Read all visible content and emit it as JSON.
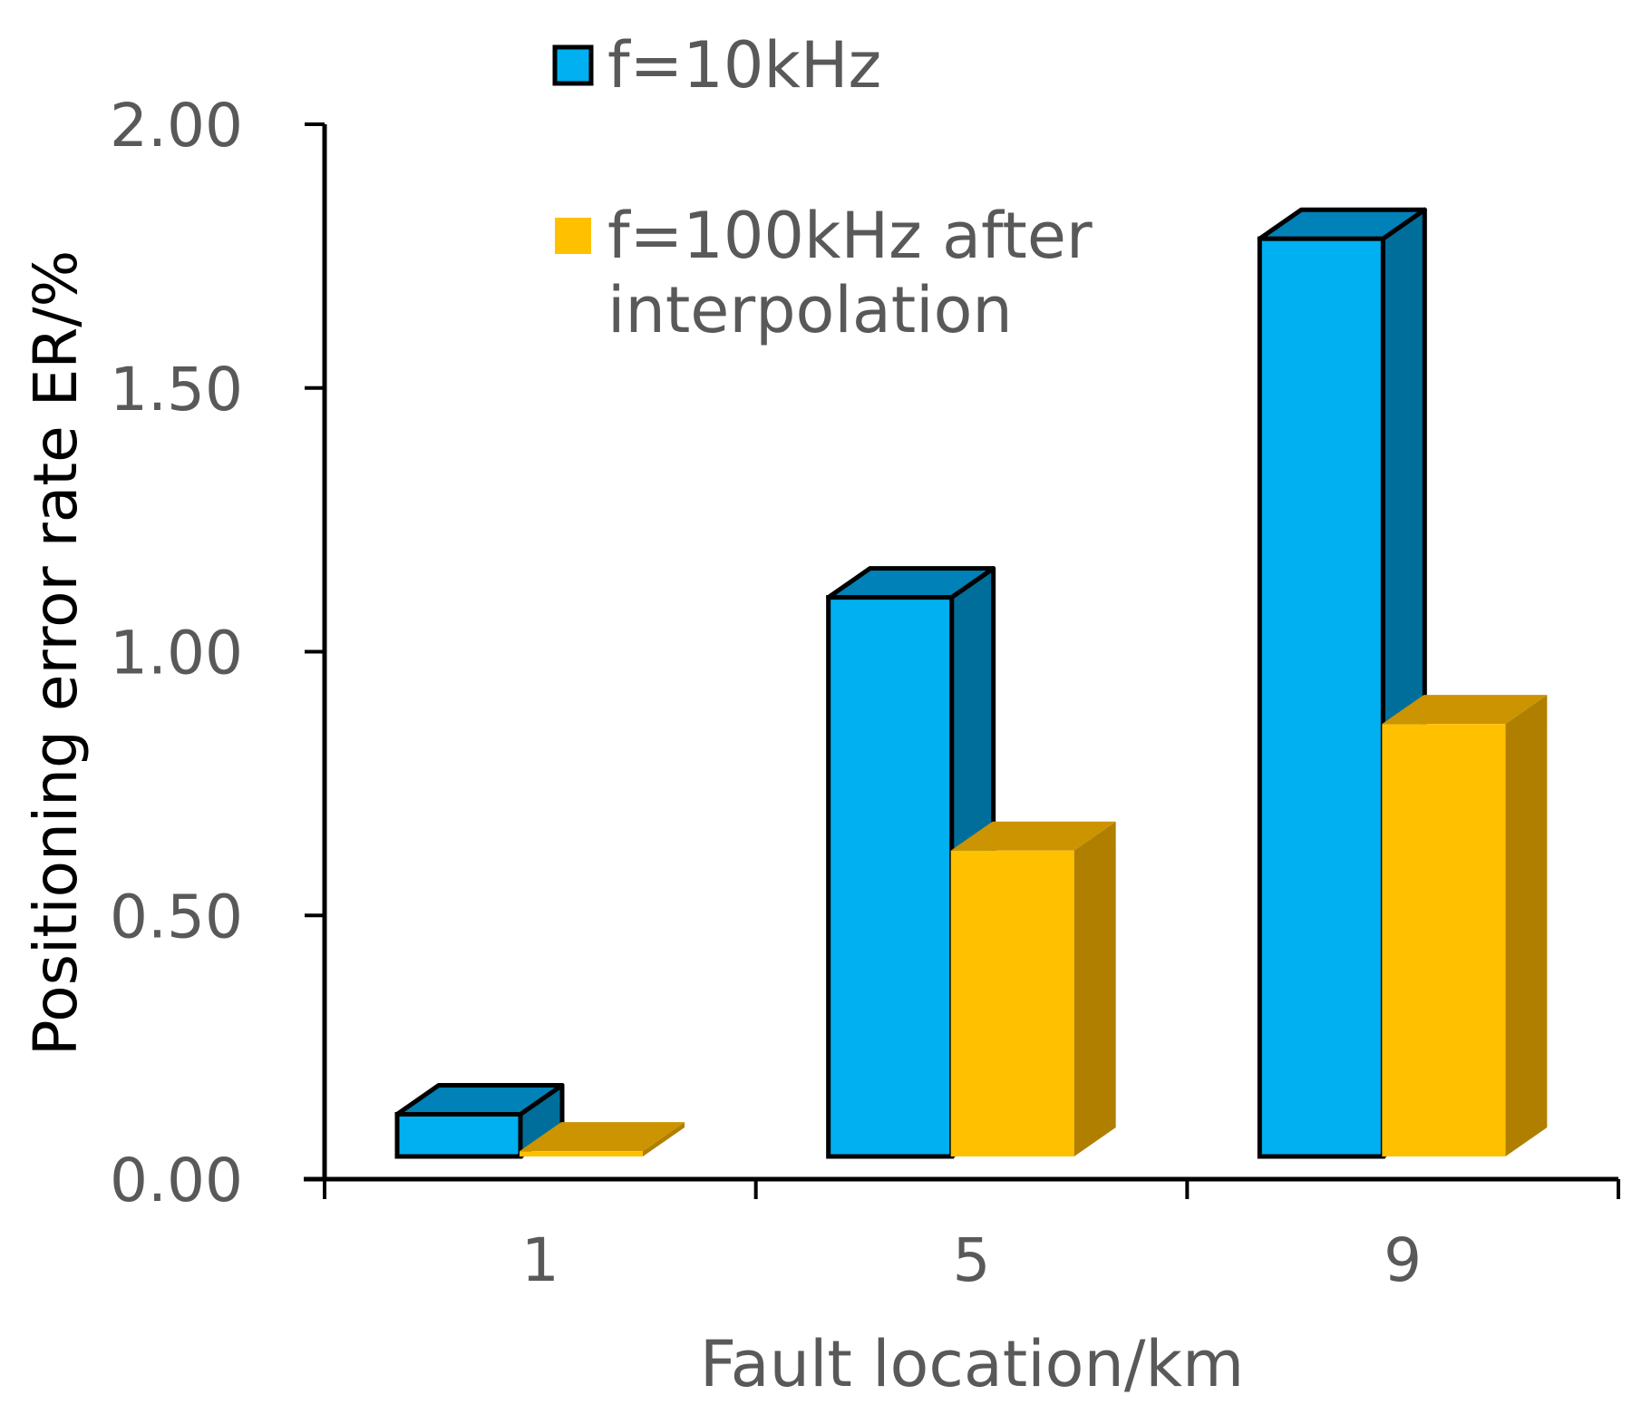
{
  "chart_data": {
    "type": "bar",
    "style": "3d-clustered",
    "categories": [
      "1",
      "5",
      "9"
    ],
    "series": [
      {
        "name": "f=10kHz",
        "values": [
          0.08,
          1.06,
          1.74
        ],
        "color": "#00B0F0",
        "side_color": "#006E9A",
        "top_color": "#0082B8"
      },
      {
        "name": "f=100kHz after interpolation",
        "name_lines": [
          "f=100kHz after",
          "interpolation"
        ],
        "values": [
          0.01,
          0.58,
          0.82
        ],
        "color": "#FFC000",
        "side_color": "#B07F00",
        "top_color": "#CC9400"
      }
    ],
    "xlabel": "Fault location/km",
    "ylabel": "Positioning error rate ER/%",
    "yticks": [
      "0.00",
      "0.50",
      "1.00",
      "1.50",
      "2.00"
    ],
    "ylim": [
      0,
      2
    ],
    "grid": false,
    "legend_position": "top"
  }
}
